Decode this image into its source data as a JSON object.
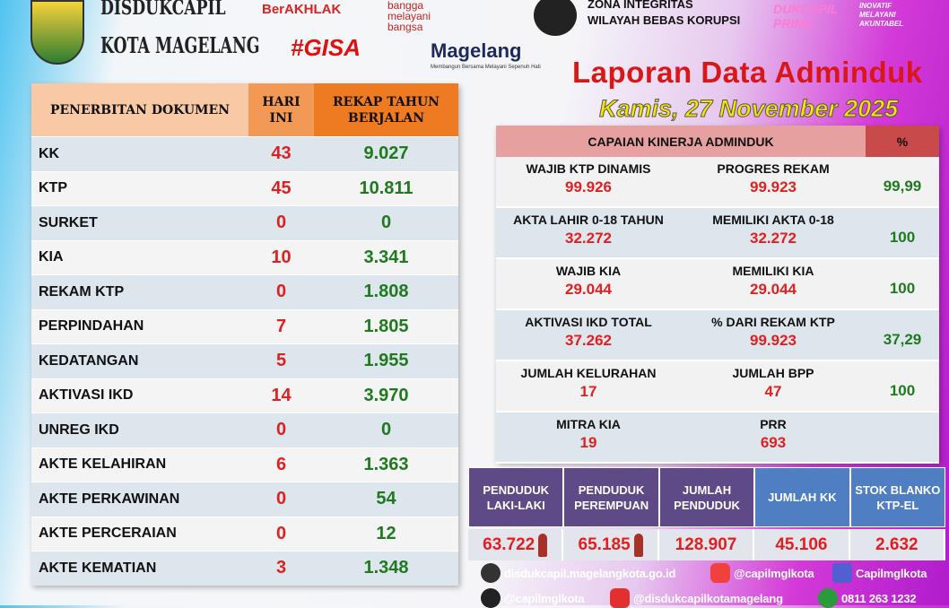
{
  "header": {
    "org_line1": "DISDUKCAPIL",
    "org_line2": "KOTA MAGELANG",
    "berakhlak": "BerAKHLAK",
    "bangga": "bangga melayani bangsa",
    "gisa": "#GISA",
    "magelang": "Magelang",
    "magelang_tag": "Membangun Bersama Melayani Sepenuh Hati",
    "zona_line1": "ZONA INTEGRITAS",
    "zona_line2": "WILAYAH BEBAS KORUPSI",
    "prime": "DUKCAPIL PRIME",
    "inovatif": "INOVATIF MELAYANI AKUNTABEL",
    "title": "Laporan Data Adminduk",
    "date": "Kamis, 27 November 2025"
  },
  "left_table": {
    "headers": [
      "PENERBITAN DOKUMEN",
      "HARI INI",
      "REKAP TAHUN BERJALAN"
    ],
    "header_colors": [
      "#f8c9a4",
      "#f29a55",
      "#ee7a22"
    ],
    "rows": [
      [
        "KK",
        "43",
        "9.027"
      ],
      [
        "KTP",
        "45",
        "10.811"
      ],
      [
        "SURKET",
        "0",
        "0"
      ],
      [
        "KIA",
        "10",
        "3.341"
      ],
      [
        "REKAM KTP",
        "0",
        "1.808"
      ],
      [
        "PERPINDAHAN",
        "7",
        "1.805"
      ],
      [
        "KEDATANGAN",
        "5",
        "1.955"
      ],
      [
        "AKTIVASI IKD",
        "14",
        "3.970"
      ],
      [
        "UNREG IKD",
        "0",
        "0"
      ],
      [
        "AKTE KELAHIRAN",
        "6",
        "1.363"
      ],
      [
        "AKTE PERKAWINAN",
        "0",
        "54"
      ],
      [
        "AKTE PERCERAIAN",
        "0",
        "12"
      ],
      [
        "AKTE KEMATIAN",
        "3",
        "1.348"
      ]
    ]
  },
  "kinerja": {
    "title": "CAPAIAN KINERJA ADMINDUK",
    "pct_header": "%",
    "rows": [
      {
        "a_label": "WAJIB KTP DINAMIS",
        "a_value": "99.926",
        "b_label": "PROGRES REKAM",
        "b_value": "99.923",
        "pct": "99,99"
      },
      {
        "a_label": "AKTA LAHIR 0-18 TAHUN",
        "a_value": "32.272",
        "b_label": "MEMILIKI AKTA 0-18",
        "b_value": "32.272",
        "pct": "100"
      },
      {
        "a_label": "WAJIB KIA",
        "a_value": "29.044",
        "b_label": "MEMILIKI KIA",
        "b_value": "29.044",
        "pct": "100"
      },
      {
        "a_label": "AKTIVASI IKD TOTAL",
        "a_value": "37.262",
        "b_label": "% DARI REKAM KTP",
        "b_value": "99.923",
        "pct": "37,29"
      },
      {
        "a_label": "JUMLAH KELURAHAN",
        "a_value": "17",
        "b_label": "JUMLAH BPP",
        "b_value": "47",
        "pct": "100"
      },
      {
        "a_label": "MITRA KIA",
        "a_value": "19",
        "b_label": "PRR",
        "b_value": "693",
        "pct": ""
      }
    ]
  },
  "population": {
    "headers": [
      "PENDUDUK LAKI-LAKI",
      "PENDUDUK PEREMPUAN",
      "JUMLAH PENDUDUK",
      "JUMLAH KK",
      "STOK BLANKO KTP-EL"
    ],
    "values": [
      "63.722",
      "65.185",
      "128.907",
      "45.106",
      "2.632"
    ]
  },
  "footer": {
    "website": "disdukcapil.magelangkota.go.id",
    "instagram": "@capilmglkota",
    "facebook": "Capilmglkota",
    "x": "@capilmglkota",
    "youtube": "@disdukcapilkotamagelang",
    "whatsapp": "0811 263 1232"
  }
}
